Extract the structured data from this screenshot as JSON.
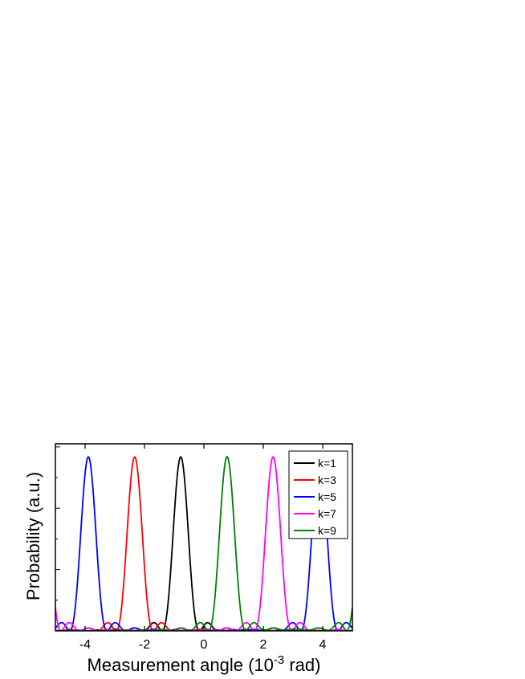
{
  "chart_data": {
    "type": "line",
    "xlabel": "Measurement angle (10",
    "xlabel_sup": "-3",
    "xlabel_tail": " rad)",
    "ylabel": "Probability (a.u.)",
    "xlim": [
      -5.0,
      5.0
    ],
    "ylim": [
      0.0,
      1.0
    ],
    "x_ticks": [
      -4,
      -2,
      0,
      2,
      4
    ],
    "x_tick_labels": [
      "-4",
      "-2",
      "0",
      "2",
      "4"
    ],
    "y_tick_labels_shown": false,
    "grid": false,
    "legend_position": "top-right",
    "function": "sinc^2",
    "main_lobe_peak": 0.93,
    "main_lobe_halfwidth": 0.63,
    "series": [
      {
        "name": "k=1",
        "color": "#000000",
        "peak_x": -0.78
      },
      {
        "name": "k=3",
        "color": "#ff0000",
        "peak_x": -2.33
      },
      {
        "name": "k=5",
        "color": "#0000ff",
        "peak_x": [
          -3.89,
          3.89
        ]
      },
      {
        "name": "k=7",
        "color": "#ff00ff",
        "peak_x": [
          -5.44,
          2.33
        ]
      },
      {
        "name": "k=9",
        "color": "#008000",
        "peak_x": [
          0.78,
          5.44
        ]
      }
    ]
  }
}
